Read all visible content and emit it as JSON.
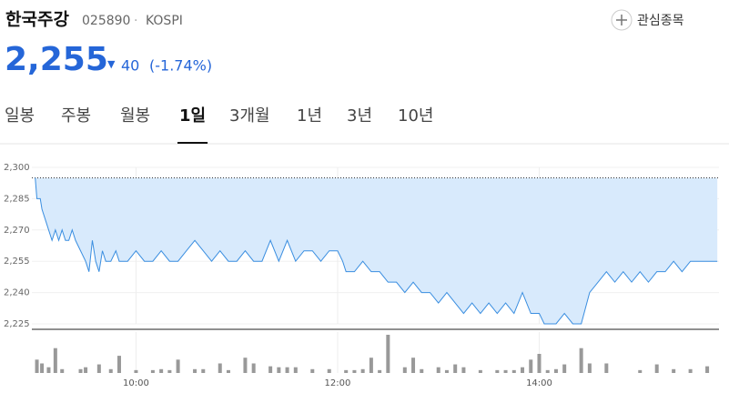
{
  "header": {
    "name": "한국주강",
    "code": "025890",
    "separator": "·",
    "market": "KOSPI",
    "watch": "관심종목",
    "price": "2,255",
    "arrow": "▼",
    "change": "40",
    "change_pct": "(-1.74%)"
  },
  "tabs": [
    "일봉",
    "주봉",
    "월봉",
    "1일",
    "3개월",
    "1년",
    "3년",
    "10년"
  ],
  "selected_tab": 3,
  "chart_data": {
    "type": "line",
    "color": "#3a8ee0",
    "fill_color": "#d8eafc",
    "x": [
      "09:00",
      "09:01",
      "09:03",
      "09:04",
      "09:06",
      "09:08",
      "09:10",
      "09:12",
      "09:14",
      "09:16",
      "09:18",
      "09:20",
      "09:22",
      "09:24",
      "09:27",
      "09:30",
      "09:32",
      "09:34",
      "09:36",
      "09:38",
      "09:40",
      "09:42",
      "09:45",
      "09:48",
      "09:50",
      "09:55",
      "10:00",
      "10:05",
      "10:10",
      "10:15",
      "10:20",
      "10:25",
      "10:30",
      "10:35",
      "10:40",
      "10:45",
      "10:50",
      "10:55",
      "11:00",
      "11:05",
      "11:10",
      "11:15",
      "11:20",
      "11:25",
      "11:30",
      "11:35",
      "11:40",
      "11:45",
      "11:50",
      "11:55",
      "12:00",
      "12:03",
      "12:05",
      "12:10",
      "12:15",
      "12:20",
      "12:25",
      "12:30",
      "12:35",
      "12:40",
      "12:45",
      "12:50",
      "12:55",
      "13:00",
      "13:05",
      "13:10",
      "13:15",
      "13:20",
      "13:25",
      "13:30",
      "13:35",
      "13:40",
      "13:45",
      "13:50",
      "13:55",
      "14:00",
      "14:03",
      "14:10",
      "14:15",
      "14:20",
      "14:25",
      "14:30",
      "14:35",
      "14:40",
      "14:45",
      "14:50",
      "14:55",
      "15:00",
      "15:05",
      "15:10",
      "15:15",
      "15:20",
      "15:25",
      "15:30",
      "15:40",
      "15:46"
    ],
    "values": [
      2295,
      2285,
      2285,
      2280,
      2275,
      2270,
      2265,
      2270,
      2265,
      2270,
      2265,
      2265,
      2270,
      2265,
      2260,
      2255,
      2250,
      2265,
      2255,
      2250,
      2260,
      2255,
      2255,
      2260,
      2255,
      2255,
      2260,
      2255,
      2255,
      2260,
      2255,
      2255,
      2260,
      2265,
      2260,
      2255,
      2260,
      2255,
      2255,
      2260,
      2255,
      2255,
      2265,
      2255,
      2265,
      2255,
      2260,
      2260,
      2255,
      2260,
      2260,
      2255,
      2250,
      2250,
      2255,
      2250,
      2250,
      2245,
      2245,
      2240,
      2245,
      2240,
      2240,
      2235,
      2240,
      2235,
      2230,
      2235,
      2230,
      2235,
      2230,
      2235,
      2230,
      2240,
      2230,
      2230,
      2225,
      2225,
      2230,
      2225,
      2225,
      2240,
      2245,
      2250,
      2245,
      2250,
      2245,
      2250,
      2245,
      2250,
      2250,
      2255,
      2250,
      2255,
      2255,
      2255
    ],
    "xlim": [
      "08:58",
      "15:47"
    ],
    "xticks": [
      "10:00",
      "12:00",
      "14:00"
    ],
    "ylim": [
      2225,
      2300
    ],
    "yticks": [
      {
        "value": 2300,
        "label": "2,300"
      },
      {
        "value": 2285,
        "label": "2,285"
      },
      {
        "value": 2270,
        "label": "2,270"
      },
      {
        "value": 2255,
        "label": "2,255"
      },
      {
        "value": 2240,
        "label": "2,240"
      },
      {
        "value": 2225,
        "label": "2,225"
      }
    ],
    "reference_value": 2295,
    "volume": {
      "color": "#999999",
      "x": [
        "09:01",
        "09:04",
        "09:08",
        "09:12",
        "09:16",
        "09:27",
        "09:30",
        "09:38",
        "09:45",
        "09:50",
        "10:00",
        "10:10",
        "10:15",
        "10:20",
        "10:25",
        "10:35",
        "10:40",
        "10:50",
        "10:55",
        "11:05",
        "11:10",
        "11:20",
        "11:25",
        "11:30",
        "11:35",
        "11:45",
        "11:55",
        "12:05",
        "12:10",
        "12:15",
        "12:20",
        "12:25",
        "12:30",
        "12:40",
        "12:45",
        "12:50",
        "13:00",
        "13:05",
        "13:10",
        "13:15",
        "13:25",
        "13:35",
        "13:40",
        "13:45",
        "13:50",
        "13:55",
        "14:00",
        "14:05",
        "14:10",
        "14:15",
        "14:25",
        "14:30",
        "14:40",
        "15:00",
        "15:10",
        "15:20",
        "15:30",
        "15:40"
      ],
      "values": [
        14,
        10,
        6,
        26,
        4,
        4,
        6,
        9,
        4,
        18,
        3,
        3,
        4,
        3,
        14,
        4,
        4,
        10,
        3,
        16,
        10,
        7,
        6,
        6,
        6,
        4,
        4,
        3,
        3,
        4,
        16,
        3,
        40,
        6,
        16,
        4,
        6,
        3,
        9,
        6,
        3,
        3,
        3,
        3,
        6,
        14,
        20,
        3,
        4,
        9,
        26,
        10,
        10,
        3,
        9,
        4,
        4,
        7
      ]
    }
  }
}
